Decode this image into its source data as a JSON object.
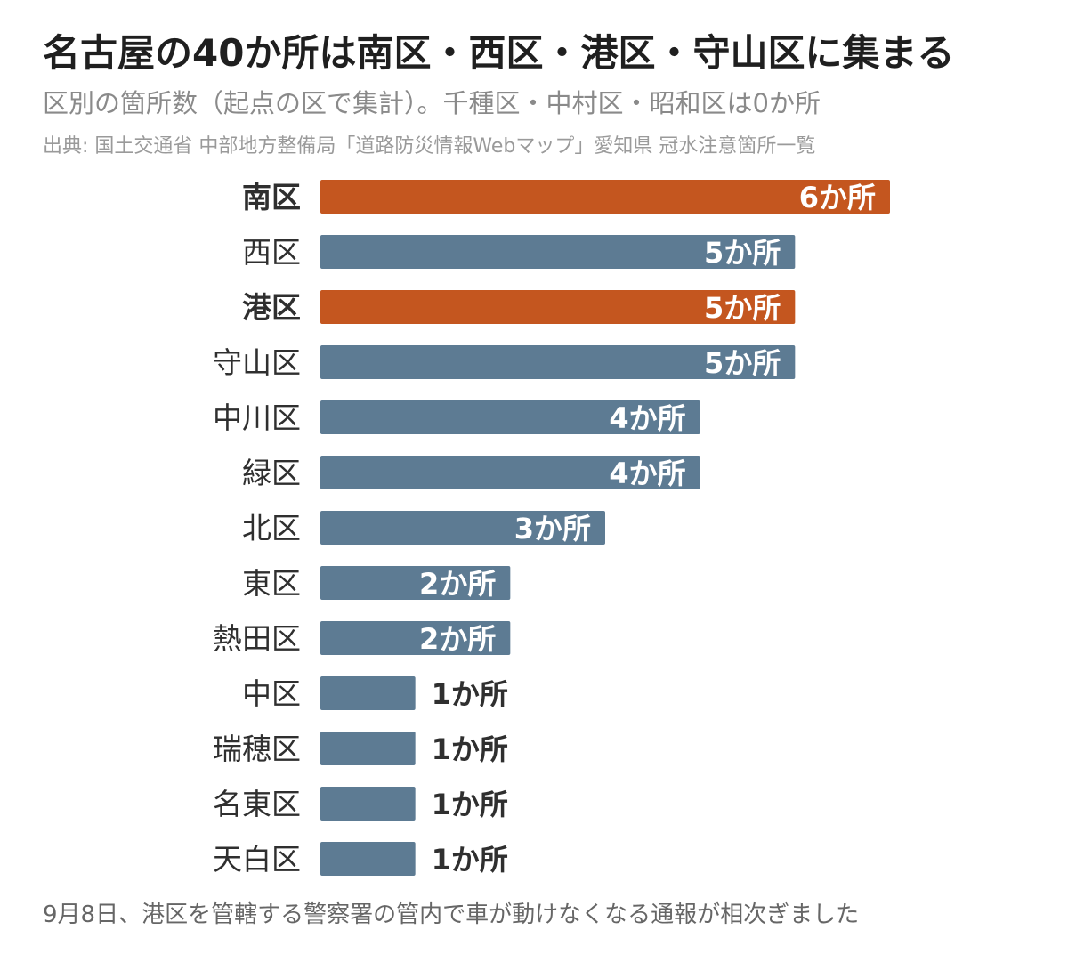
{
  "header": {
    "title": "名古屋の40か所は南区・西区・港区・守山区に集まる",
    "subtitle": "区別の箇所数（起点の区で集計）。千種区・中村区・昭和区は0か所",
    "source": "出典: 国土交通省 中部地方整備局「道路防災情報Webマップ」愛知県 冠水注意箇所一覧"
  },
  "footer": {
    "note": "9月8日、港区を管轄する警察署の管内で車が動けなくなる通報が相次ぎました"
  },
  "colors": {
    "highlight": "#c4561f",
    "normal": "#5d7b93",
    "label_inside": "#ffffff",
    "label_outside": "#2f2f2f",
    "category": "#2f2f2f"
  },
  "chart_data": {
    "type": "bar",
    "orientation": "horizontal",
    "categories": [
      "南区",
      "西区",
      "港区",
      "守山区",
      "中川区",
      "緑区",
      "北区",
      "東区",
      "熱田区",
      "中区",
      "瑞穂区",
      "名東区",
      "天白区"
    ],
    "values": [
      6,
      5,
      5,
      5,
      4,
      4,
      3,
      2,
      2,
      1,
      1,
      1,
      1
    ],
    "labels": [
      "6か所",
      "5か所",
      "5か所",
      "5か所",
      "4か所",
      "4か所",
      "3か所",
      "2か所",
      "2か所",
      "1か所",
      "1か所",
      "1か所",
      "1か所"
    ],
    "highlighted": [
      "南区",
      "港区"
    ],
    "xlim": [
      0,
      6
    ],
    "grid": false,
    "legend": "none"
  }
}
